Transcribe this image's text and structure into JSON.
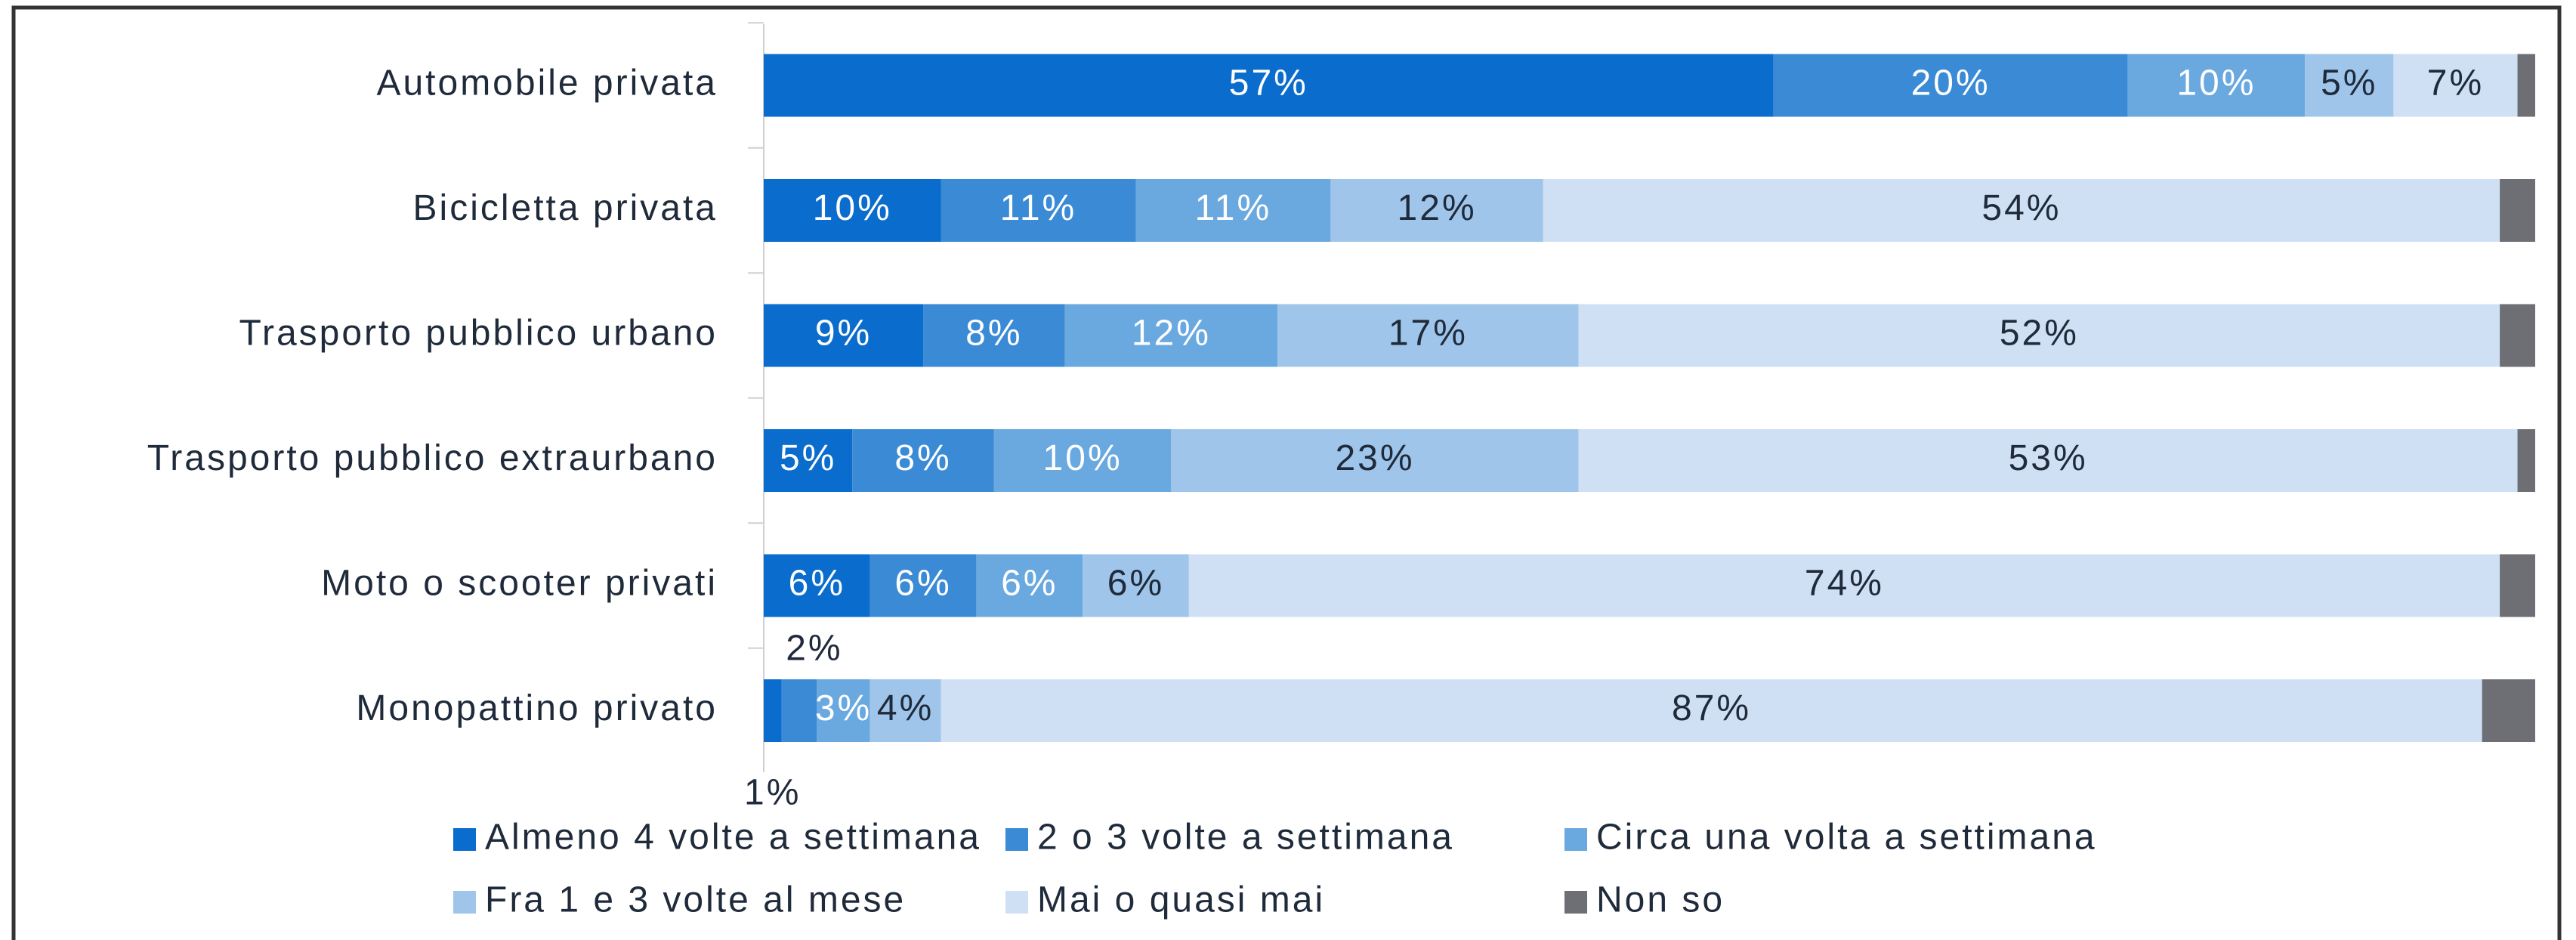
{
  "chart_data": {
    "type": "stacked_bar_horizontal",
    "categories": [
      "Automobile privata",
      "Bicicletta privata",
      "Trasporto pubblico urbano",
      "Trasporto pubblico extraurbano",
      "Moto o scooter privati",
      "Monopattino privato"
    ],
    "xlim": [
      0,
      100
    ],
    "legend": "bottom",
    "series": [
      {
        "name": "Almeno 4 volte a settimana",
        "color": "#0a6ccc",
        "values": [
          57,
          10,
          9,
          5,
          6,
          1
        ],
        "value_labels": [
          "57%",
          "10%",
          "9%",
          "5%",
          "6%",
          "1%"
        ]
      },
      {
        "name": "2 o 3 volte a settimana",
        "color": "#3a8ad6",
        "values": [
          20,
          11,
          8,
          8,
          6,
          2
        ],
        "value_labels": [
          "20%",
          "11%",
          "8%",
          "8%",
          "6%",
          "2%"
        ]
      },
      {
        "name": "Circa una volta a settimana",
        "color": "#6aa8e0",
        "values": [
          10,
          11,
          12,
          10,
          6,
          3
        ],
        "value_labels": [
          "10%",
          "11%",
          "12%",
          "10%",
          "6%",
          "3%"
        ]
      },
      {
        "name": "Fra 1 e 3 volte al mese",
        "color": "#9fc5ea",
        "values": [
          5,
          12,
          17,
          23,
          6,
          4
        ],
        "value_labels": [
          "5%",
          "12%",
          "17%",
          "23%",
          "6%",
          "4%"
        ]
      },
      {
        "name": "Mai o quasi mai",
        "color": "#cfe0f5",
        "values": [
          7,
          54,
          52,
          53,
          74,
          87
        ],
        "value_labels": [
          "7%",
          "54%",
          "52%",
          "53%",
          "74%",
          "87%"
        ]
      },
      {
        "name": "Non so",
        "color": "#6d6f75",
        "values": [
          1,
          2,
          2,
          1,
          2,
          3
        ]
      }
    ]
  }
}
